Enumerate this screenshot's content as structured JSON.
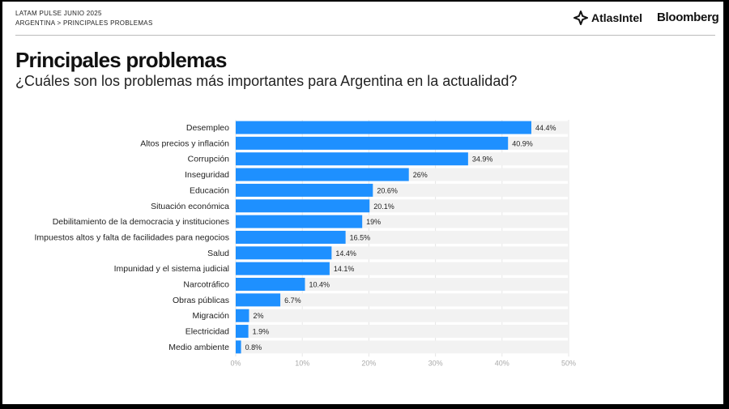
{
  "header": {
    "report": "LATAM PULSE JUNIO 2025",
    "breadcrumb": "ARGENTINA > PRINCIPALES PROBLEMAS",
    "brand_atlas": "AtlasIntel",
    "brand_bloomberg": "Bloomberg"
  },
  "title": "Principales problemas",
  "subtitle": "¿Cuáles son los problemas más importantes para Argentina en la actualidad?",
  "colors": {
    "bar": "#1e90ff",
    "track": "#f2f2f2"
  },
  "chart_data": {
    "type": "bar",
    "orientation": "horizontal",
    "title": "Principales problemas",
    "xlim": [
      0,
      50
    ],
    "ticks": [
      "0%",
      "10%",
      "20%",
      "30%",
      "40%",
      "50%"
    ],
    "tick_values": [
      0,
      10,
      20,
      30,
      40,
      50
    ],
    "categories": [
      "Desempleo",
      "Altos precios y inflación",
      "Corrupción",
      "Inseguridad",
      "Educación",
      "Situación económica",
      "Debilitamiento de la democracia y instituciones",
      "Impuestos altos y falta de facilidades para negocios",
      "Salud",
      "Impunidad y el sistema judicial",
      "Narcotráfico",
      "Obras públicas",
      "Migración",
      "Electricidad",
      "Medio ambiente"
    ],
    "values": [
      44.4,
      40.9,
      34.9,
      26,
      20.6,
      20.1,
      19,
      16.5,
      14.4,
      14.1,
      10.4,
      6.7,
      2,
      1.9,
      0.8
    ],
    "value_labels": [
      "44.4%",
      "40.9%",
      "34.9%",
      "26%",
      "20.6%",
      "20.1%",
      "19%",
      "16.5%",
      "14.4%",
      "14.1%",
      "10.4%",
      "6.7%",
      "2%",
      "1.9%",
      "0.8%"
    ]
  }
}
